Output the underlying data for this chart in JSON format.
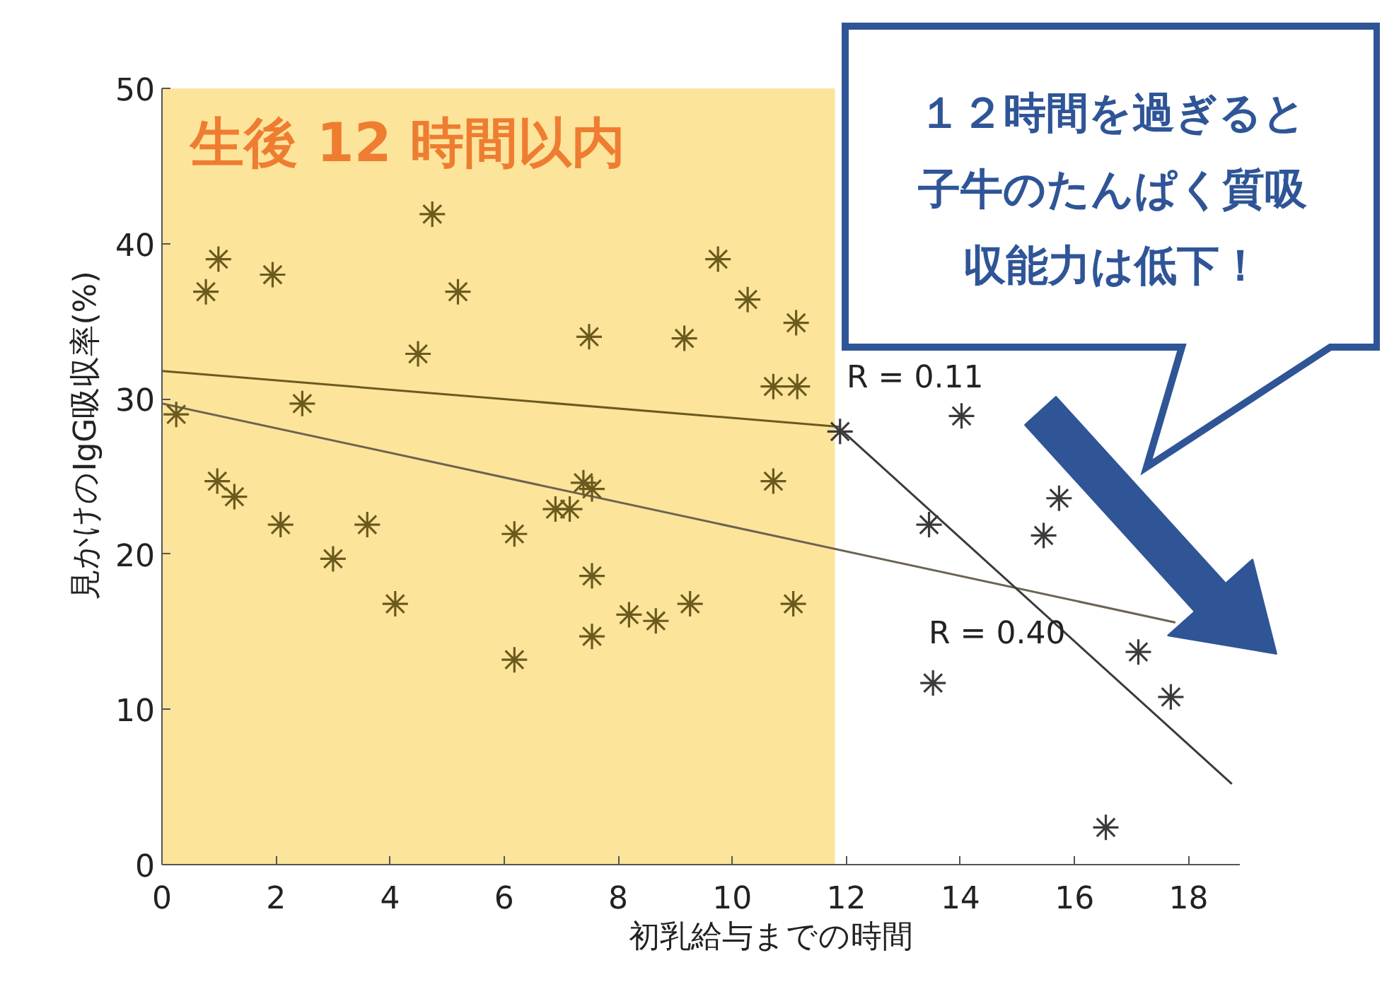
{
  "chart_data": {
    "type": "scatter",
    "xlabel": "初乳給与までの時間",
    "ylabel": "見かけのIgG吸収率(%)",
    "xlim": [
      0,
      18.9
    ],
    "ylim": [
      0,
      50
    ],
    "xticks": [
      0,
      2,
      4,
      6,
      8,
      10,
      12,
      14,
      16,
      18
    ],
    "yticks": [
      0,
      10,
      20,
      30,
      40,
      50
    ],
    "grid": false,
    "bands": [
      {
        "axis": "x",
        "from": 0,
        "to": 11.8,
        "label": "生後 12 時間以内",
        "color": "#fde49b"
      }
    ],
    "series": [
      {
        "color": "#6b5a1e",
        "marker": "cross",
        "x": [
          0.25,
          0.77,
          0.99,
          0.97,
          1.27,
          1.94,
          2.08,
          2.46,
          3.0,
          3.6,
          4.09,
          4.49,
          4.74,
          5.19,
          6.18,
          6.18,
          6.9,
          7.15,
          7.39,
          7.49,
          7.54,
          7.54,
          7.54,
          8.19,
          8.66,
          9.16,
          9.26,
          9.75,
          10.27,
          10.72,
          11.14,
          10.72,
          11.12,
          11.07
        ],
        "values": [
          29.0,
          36.9,
          39.0,
          24.7,
          23.7,
          38.0,
          21.9,
          29.7,
          19.7,
          21.9,
          16.8,
          32.9,
          41.9,
          36.9,
          21.3,
          13.2,
          22.9,
          22.9,
          24.6,
          34.0,
          24.2,
          18.6,
          14.7,
          16.1,
          15.7,
          33.9,
          16.8,
          39.0,
          36.4,
          30.8,
          30.8,
          24.7,
          34.9,
          16.8
        ]
      },
      {
        "color": "#3a3a3a",
        "marker": "cross",
        "x": [
          11.89,
          14.02,
          13.45,
          13.52,
          15.73,
          15.46,
          17.12,
          17.69,
          16.55
        ],
        "values": [
          27.9,
          28.9,
          21.9,
          11.7,
          23.6,
          21.2,
          13.7,
          10.8,
          2.4
        ]
      },
      {
        "type": "line",
        "color": "#6b5a1e",
        "line_style": "solid",
        "marker": "none",
        "x": [
          0,
          11.89
        ],
        "values": [
          31.8,
          28.2
        ]
      },
      {
        "type": "line",
        "color": "#6b6450",
        "line_style": "solid",
        "marker": "none",
        "x": [
          0,
          17.77
        ],
        "values": [
          29.7,
          15.6
        ]
      },
      {
        "type": "line",
        "color": "#3a3a3a",
        "line_style": "solid",
        "marker": "none",
        "x": [
          11.94,
          18.76
        ],
        "values": [
          27.9,
          5.2
        ]
      }
    ],
    "annotations": [
      "R = 0.11",
      "R = 0.40",
      "１２時間を過ぎると子牛のたんぱく質吸収能力は低下！"
    ]
  }
}
